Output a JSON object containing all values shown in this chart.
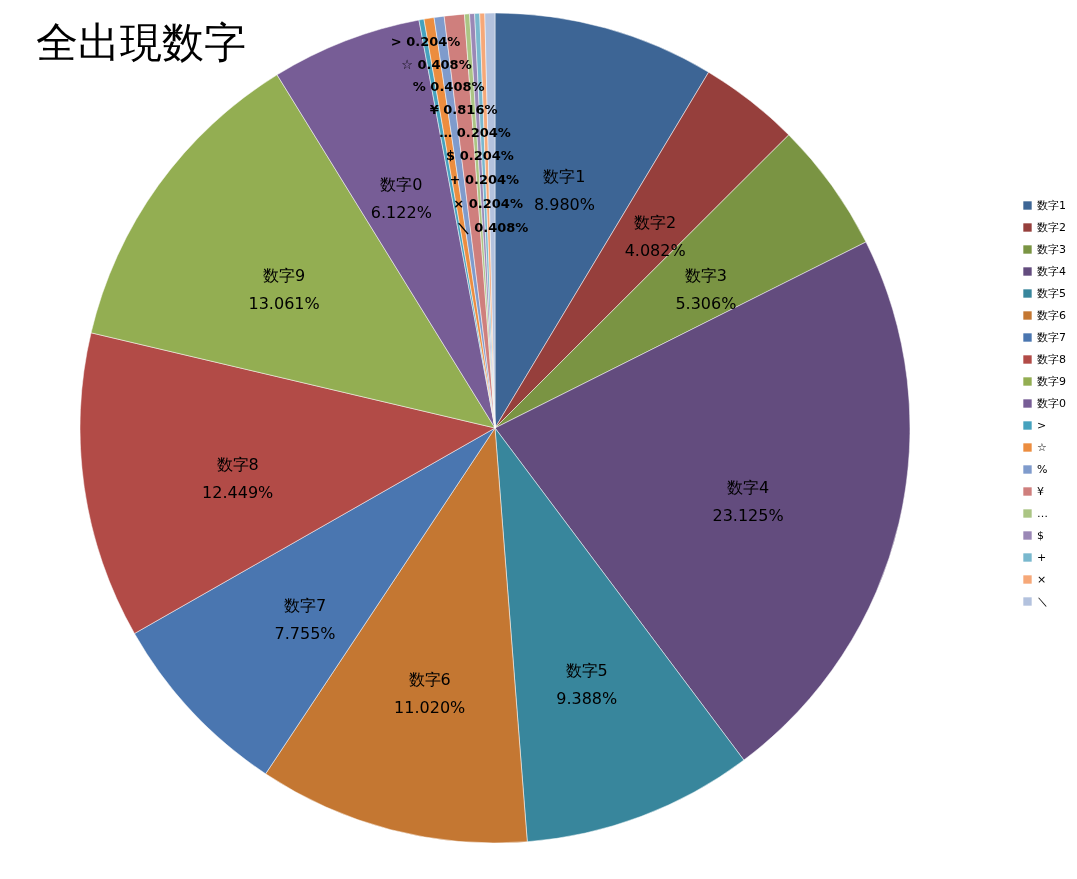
{
  "chart_data": {
    "type": "pie",
    "title": "全出現数字",
    "categories": [
      "数字1",
      "数字2",
      "数字3",
      "数字4",
      "数字5",
      "数字6",
      "数字7",
      "数字8",
      "数字9",
      "数字0",
      ">",
      "☆",
      "%",
      "¥",
      "…",
      "$",
      "+",
      "×",
      "＼"
    ],
    "values": [
      8.98,
      4.082,
      5.306,
      23.125,
      9.388,
      11.02,
      7.755,
      12.449,
      13.061,
      6.122,
      0.204,
      0.408,
      0.408,
      0.816,
      0.204,
      0.204,
      0.204,
      0.204,
      0.408
    ],
    "value_labels": [
      "8.980%",
      "4.082%",
      "5.306%",
      "23.125%",
      "9.388%",
      "11.020%",
      "7.755%",
      "12.449%",
      "13.061%",
      "6.122%",
      "0.204%",
      "0.408%",
      "0.408%",
      "0.816%",
      "0.204%",
      "0.204%",
      "0.204%",
      "0.204%",
      "0.408%"
    ],
    "colors": [
      "#3d6595",
      "#963f3c",
      "#7a9443",
      "#634c7e",
      "#38869c",
      "#c47732",
      "#4a76b0",
      "#b24b47",
      "#93ae52",
      "#775d96",
      "#46a2be",
      "#ec8d3f",
      "#7f9bcc",
      "#cf7f7d",
      "#abc584",
      "#9a88b6",
      "#79b8ce",
      "#f6a878",
      "#b3c2de"
    ],
    "legend": "right"
  }
}
